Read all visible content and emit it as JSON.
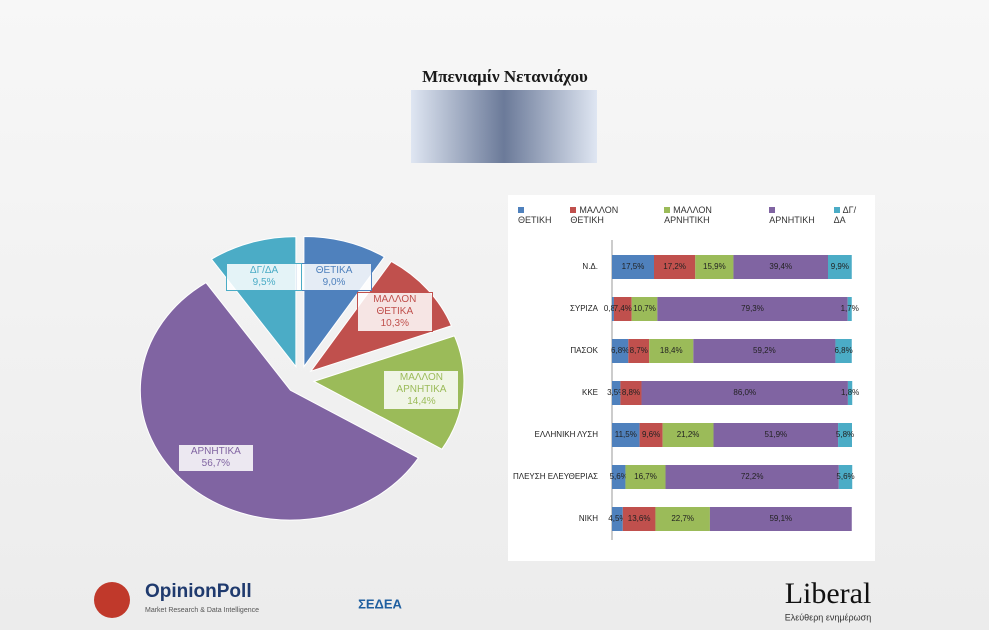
{
  "header": {
    "title": "Μπενιαμίν Νετανιάχου"
  },
  "chart_data": [
    {
      "type": "pie",
      "categories": [
        "ΘΕΤΙΚΑ",
        "ΜΑΛΛΟΝ ΘΕΤΙΚΑ",
        "ΜΑΛΛΟΝ ΑΡΝΗΤΙΚΑ",
        "ΑΡΝΗΤΙΚΑ",
        "ΔΓ/ΔΑ"
      ],
      "values": [
        9.0,
        10.3,
        14.4,
        56.7,
        9.5
      ],
      "value_labels": [
        "9,0%",
        "10,3%",
        "14,4%",
        "56,7%",
        "9,5%"
      ],
      "colors": [
        "#4f81bd",
        "#c0504d",
        "#9bbb59",
        "#8064a2",
        "#4bacc6"
      ]
    },
    {
      "type": "stacked-bar",
      "categories": [
        "Ν.Δ.",
        "ΣΥΡΙΖΑ",
        "ΠΑΣΟΚ",
        "ΚΚΕ",
        "ΕΛΛΗΝΙΚΗ ΛΥΣΗ",
        "ΠΛΕΥΣΗ ΕΛΕΥΘΕΡΙΑΣ",
        "ΝΙΚΗ"
      ],
      "xlim": [
        0,
        100
      ],
      "legend": "top",
      "series": [
        {
          "name": "ΘΕΤΙΚΗ",
          "color": "#4f81bd",
          "values": [
            17.5,
            0.8,
            6.8,
            3.5,
            11.5,
            5.6,
            4.5
          ],
          "value_labels": [
            "17,5%",
            "0,8%",
            "6,8%",
            "3,5%",
            "11,5%",
            "5,6%",
            "4,5%"
          ]
        },
        {
          "name": "ΜΑΛΛΟΝ ΘΕΤΙΚΗ",
          "color": "#c0504d",
          "values": [
            17.2,
            7.4,
            8.7,
            8.8,
            9.6,
            null,
            13.6
          ],
          "value_labels": [
            "17,2%",
            "7,4%",
            "8,7%",
            "8,8%",
            "9,6%",
            null,
            "13,6%"
          ]
        },
        {
          "name": "ΜΑΛΛΟΝ ΑΡΝΗΤΙΚΗ",
          "color": "#9bbb59",
          "values": [
            15.9,
            10.7,
            18.4,
            null,
            21.2,
            16.7,
            22.7
          ],
          "value_labels": [
            "15,9%",
            "10,7%",
            "18,4%",
            null,
            "21,2%",
            "16,7%",
            "22,7%"
          ]
        },
        {
          "name": "ΑΡΝΗΤΙΚΗ",
          "color": "#8064a2",
          "values": [
            39.4,
            79.3,
            59.2,
            86.0,
            51.9,
            72.2,
            59.1
          ],
          "value_labels": [
            "39,4%",
            "79,3%",
            "59,2%",
            "86,0%",
            "51,9%",
            "72,2%",
            "59,1%"
          ]
        },
        {
          "name": "ΔΓ/ΔΑ",
          "color": "#4bacc6",
          "values": [
            9.9,
            1.7,
            6.8,
            1.8,
            5.8,
            5.6,
            null
          ],
          "value_labels": [
            "9,9%",
            "1,7%",
            "6,8%",
            "1,8%",
            "5,8%",
            "5,6%",
            null
          ]
        }
      ]
    }
  ],
  "footer": {
    "opinionpoll": "OpinionPoll",
    "opinionpoll_tagline": "Market Research & Data Intelligence",
    "sedea": "ΣΕΔΕΑ",
    "liberal": "Liberal",
    "liberal_tagline": "Ελεύθερη ενημέρωση"
  }
}
